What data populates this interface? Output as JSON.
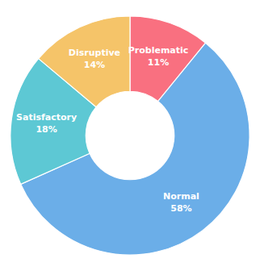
{
  "chart_data": {
    "type": "pie",
    "categories": [
      "Problematic",
      "Normal",
      "Satisfactory",
      "Disruptive"
    ],
    "values": [
      11,
      58,
      18,
      14
    ],
    "value_labels": [
      "11%",
      "58%",
      "18%",
      "14%"
    ],
    "colors": [
      "#F97080",
      "#6BAEE8",
      "#5DC8D4",
      "#F5C469"
    ],
    "data_labels": true
  }
}
